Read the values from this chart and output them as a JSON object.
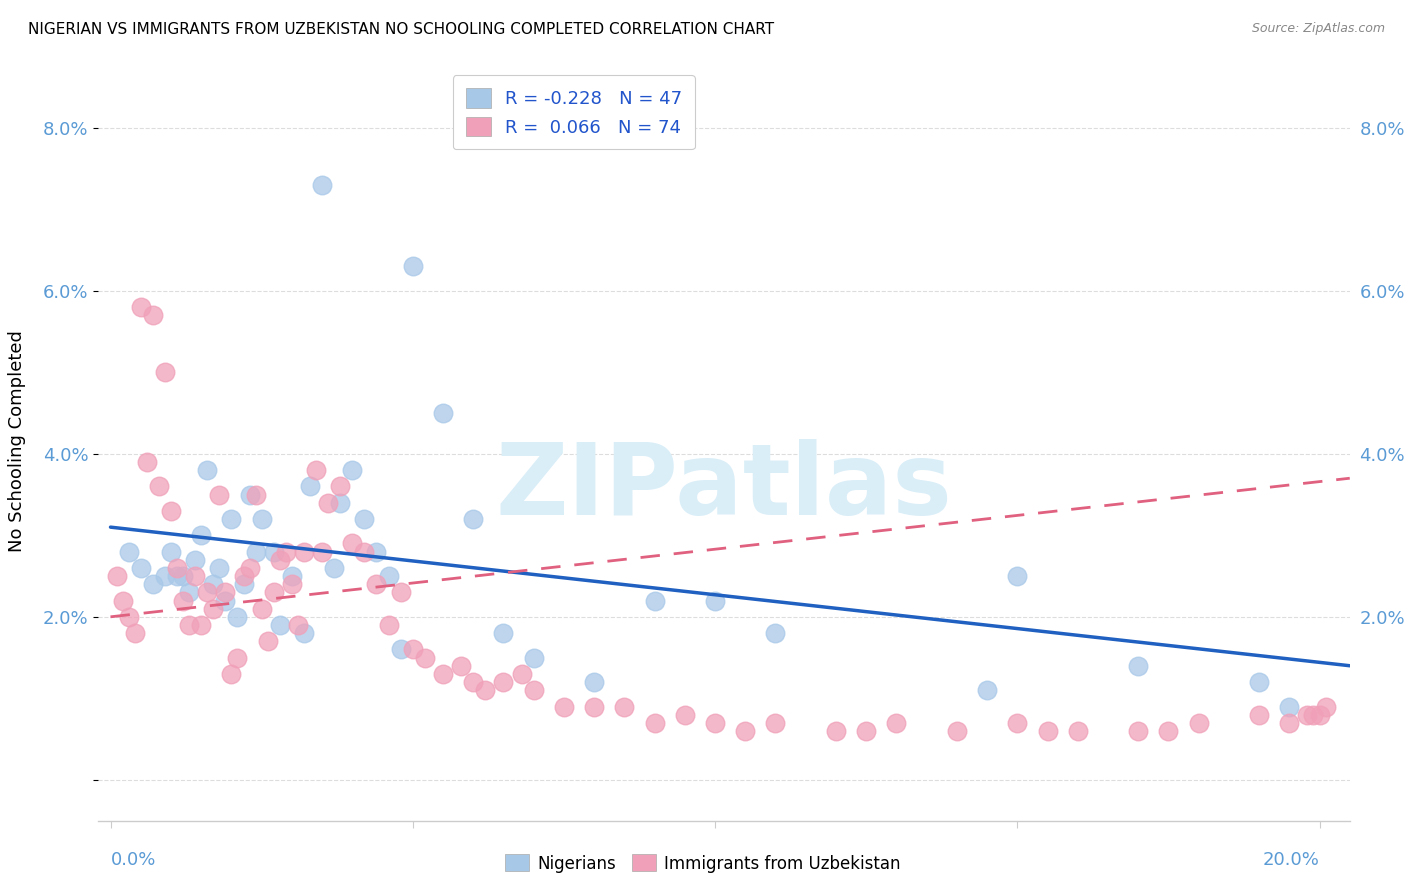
{
  "title": "NIGERIAN VS IMMIGRANTS FROM UZBEKISTAN NO SCHOOLING COMPLETED CORRELATION CHART",
  "source": "Source: ZipAtlas.com",
  "ylabel": "No Schooling Completed",
  "yticks": [
    0.0,
    0.02,
    0.04,
    0.06,
    0.08
  ],
  "ytick_labels": [
    "",
    "2.0%",
    "4.0%",
    "6.0%",
    "8.0%"
  ],
  "xticks": [
    0.0,
    0.05,
    0.1,
    0.15,
    0.2
  ],
  "xlim": [
    -0.002,
    0.205
  ],
  "ylim": [
    -0.005,
    0.088
  ],
  "blue_color": "#a8c8e8",
  "pink_color": "#f0a0b8",
  "blue_line_color": "#2060c0",
  "pink_line_color": "#e06080",
  "watermark_color": "#daeef8",
  "watermark": "ZIPatlas",
  "legend_text_color": "#2255cc",
  "grid_color": "#dddddd",
  "axis_color": "#cccccc",
  "ytick_color": "#5b9bd5",
  "xtick_color": "#5b9bd5",
  "blue_dots_x": [
    0.003,
    0.005,
    0.007,
    0.009,
    0.01,
    0.011,
    0.012,
    0.013,
    0.014,
    0.015,
    0.016,
    0.017,
    0.018,
    0.019,
    0.02,
    0.021,
    0.022,
    0.023,
    0.024,
    0.025,
    0.027,
    0.028,
    0.03,
    0.032,
    0.033,
    0.035,
    0.037,
    0.038,
    0.04,
    0.042,
    0.044,
    0.046,
    0.048,
    0.05,
    0.055,
    0.06,
    0.065,
    0.07,
    0.08,
    0.09,
    0.1,
    0.11,
    0.145,
    0.15,
    0.17,
    0.19,
    0.195
  ],
  "blue_dots_y": [
    0.028,
    0.026,
    0.024,
    0.025,
    0.028,
    0.025,
    0.025,
    0.023,
    0.027,
    0.03,
    0.038,
    0.024,
    0.026,
    0.022,
    0.032,
    0.02,
    0.024,
    0.035,
    0.028,
    0.032,
    0.028,
    0.019,
    0.025,
    0.018,
    0.036,
    0.073,
    0.026,
    0.034,
    0.038,
    0.032,
    0.028,
    0.025,
    0.016,
    0.063,
    0.045,
    0.032,
    0.018,
    0.015,
    0.012,
    0.022,
    0.022,
    0.018,
    0.011,
    0.025,
    0.014,
    0.012,
    0.009
  ],
  "pink_dots_x": [
    0.001,
    0.002,
    0.003,
    0.004,
    0.005,
    0.006,
    0.007,
    0.008,
    0.009,
    0.01,
    0.011,
    0.012,
    0.013,
    0.014,
    0.015,
    0.016,
    0.017,
    0.018,
    0.019,
    0.02,
    0.021,
    0.022,
    0.023,
    0.024,
    0.025,
    0.026,
    0.027,
    0.028,
    0.029,
    0.03,
    0.031,
    0.032,
    0.034,
    0.035,
    0.036,
    0.038,
    0.04,
    0.042,
    0.044,
    0.046,
    0.048,
    0.05,
    0.052,
    0.055,
    0.058,
    0.06,
    0.062,
    0.065,
    0.068,
    0.07,
    0.075,
    0.08,
    0.085,
    0.09,
    0.095,
    0.1,
    0.105,
    0.11,
    0.12,
    0.125,
    0.13,
    0.14,
    0.15,
    0.155,
    0.16,
    0.17,
    0.175,
    0.18,
    0.19,
    0.195,
    0.198,
    0.199,
    0.2,
    0.201
  ],
  "pink_dots_y": [
    0.025,
    0.022,
    0.02,
    0.018,
    0.058,
    0.039,
    0.057,
    0.036,
    0.05,
    0.033,
    0.026,
    0.022,
    0.019,
    0.025,
    0.019,
    0.023,
    0.021,
    0.035,
    0.023,
    0.013,
    0.015,
    0.025,
    0.026,
    0.035,
    0.021,
    0.017,
    0.023,
    0.027,
    0.028,
    0.024,
    0.019,
    0.028,
    0.038,
    0.028,
    0.034,
    0.036,
    0.029,
    0.028,
    0.024,
    0.019,
    0.023,
    0.016,
    0.015,
    0.013,
    0.014,
    0.012,
    0.011,
    0.012,
    0.013,
    0.011,
    0.009,
    0.009,
    0.009,
    0.007,
    0.008,
    0.007,
    0.006,
    0.007,
    0.006,
    0.006,
    0.007,
    0.006,
    0.007,
    0.006,
    0.006,
    0.006,
    0.006,
    0.007,
    0.008,
    0.007,
    0.008,
    0.008,
    0.008,
    0.009
  ]
}
